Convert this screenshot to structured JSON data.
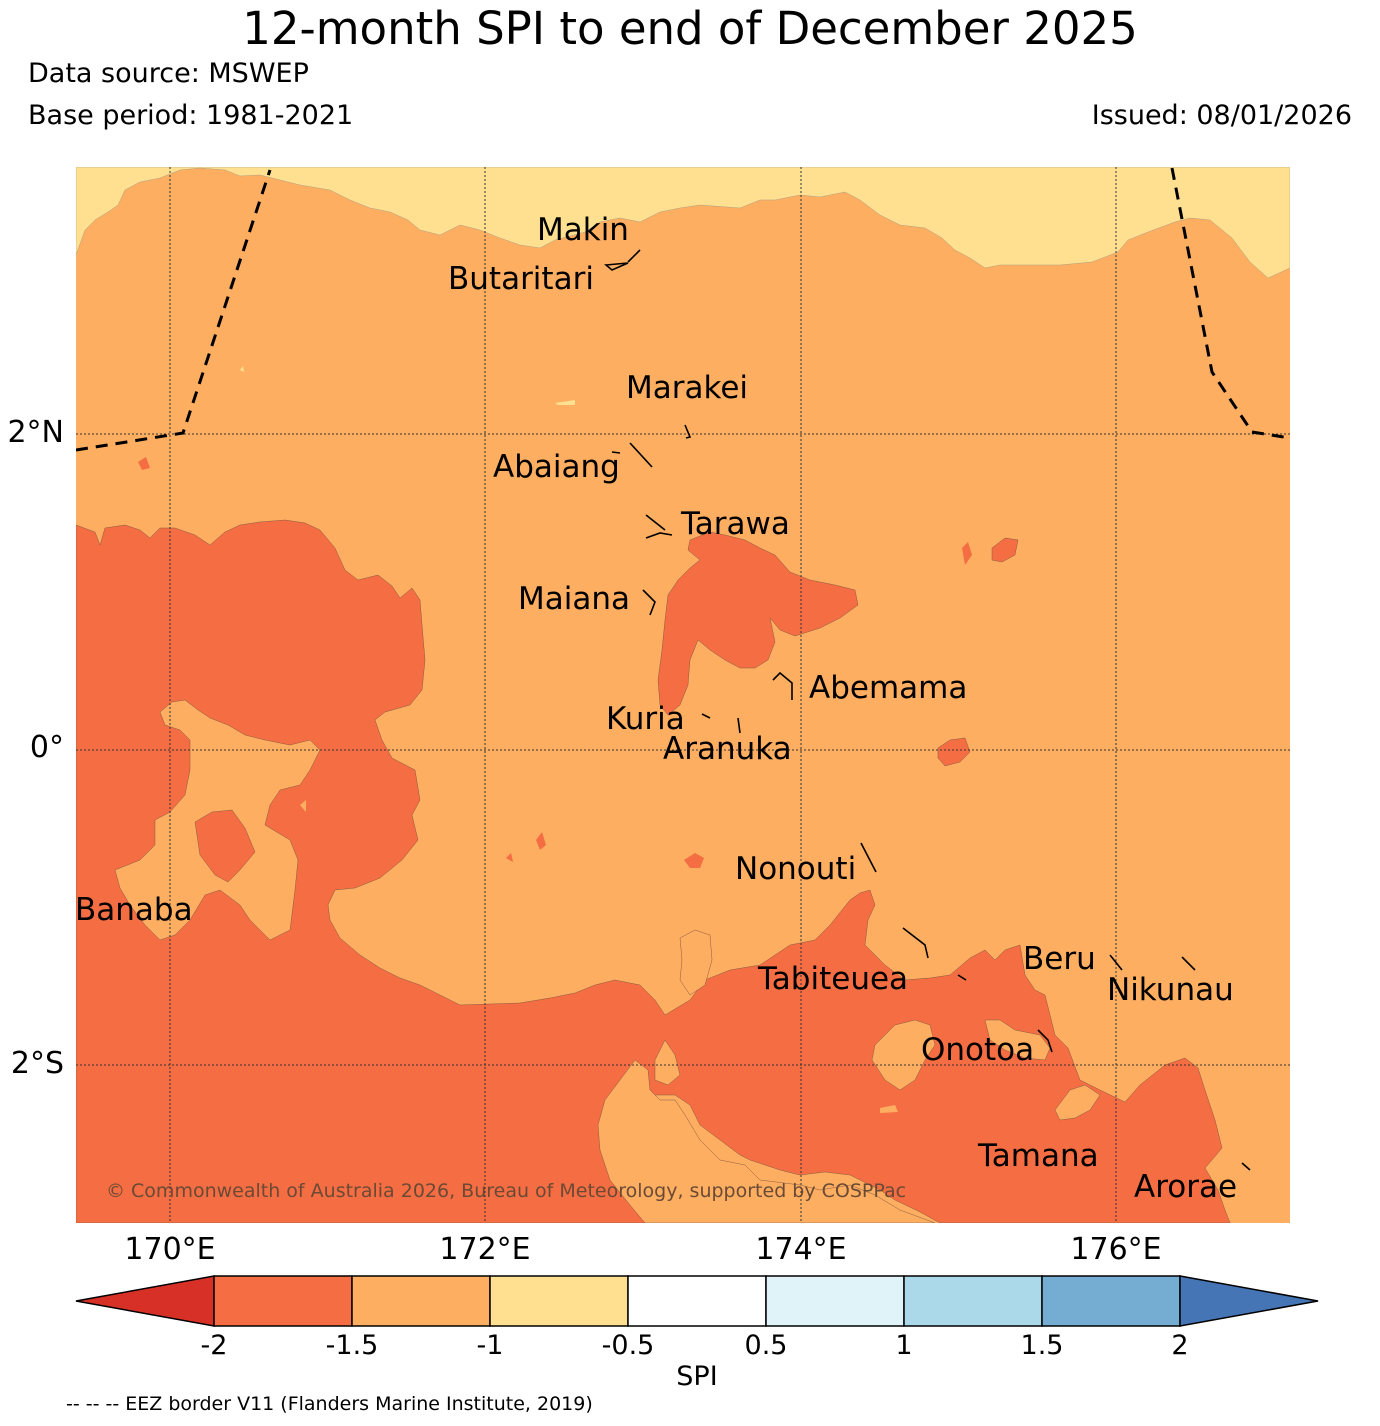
{
  "title": "12-month SPI to end of December 2025",
  "data_source": "Data source: MSWEP",
  "base_period": "Base period: 1981-2021",
  "issued": "Issued: 08/01/2026",
  "copyright": "© Commonwealth of Australia 2026, Bureau of Meteorology, supported by COSPPac",
  "footnote": "-- -- -- EEZ border V11 (Flanders Marine Institute, 2019)",
  "lat_labels": [
    "2°N",
    "0°",
    "2°S"
  ],
  "lon_labels": [
    "170°E",
    "172°E",
    "174°E",
    "176°E"
  ],
  "islands": [
    {
      "name": "Makin"
    },
    {
      "name": "Butaritari"
    },
    {
      "name": "Marakei"
    },
    {
      "name": "Abaiang"
    },
    {
      "name": "Tarawa"
    },
    {
      "name": "Maiana"
    },
    {
      "name": "Abemama"
    },
    {
      "name": "Kuria"
    },
    {
      "name": "Aranuka"
    },
    {
      "name": "Nonouti"
    },
    {
      "name": "Banaba"
    },
    {
      "name": "Beru"
    },
    {
      "name": "Tabiteuea"
    },
    {
      "name": "Nikunau"
    },
    {
      "name": "Onotoa"
    },
    {
      "name": "Tamana"
    },
    {
      "name": "Arorae"
    }
  ],
  "colorbar": {
    "label": "SPI",
    "ticks": [
      "-2",
      "-1.5",
      "-1",
      "-0.5",
      "0.5",
      "1",
      "1.5",
      "2"
    ],
    "colors": {
      "below_-2": "#d73027",
      "-2_to_-1.5": "#f46d43",
      "-1.5_to_-1": "#fdae61",
      "-1_to_-0.5": "#fee090",
      "-0.5_to_0.5": "#ffffff",
      "0.5_to_1": "#e0f3f8",
      "1_to_1.5": "#abd9e9",
      "1.5_to_2": "#74add1",
      "above_2": "#4575b4"
    }
  },
  "map_colors": {
    "moderately_dry": "#fdae61",
    "very_dry": "#f46d43",
    "slightly_dry": "#fee090"
  }
}
